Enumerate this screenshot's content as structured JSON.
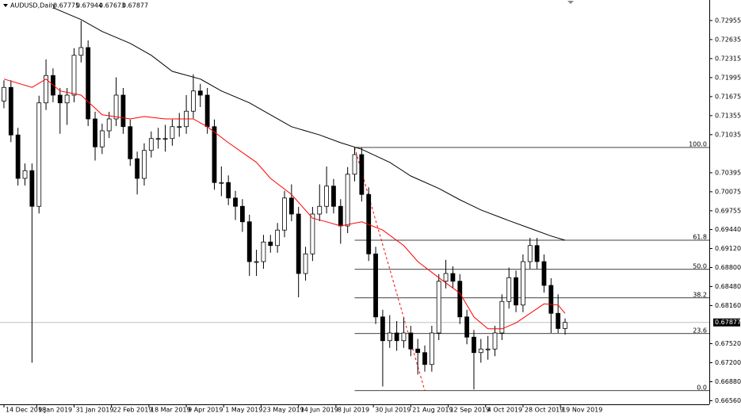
{
  "chart_data": {
    "type": "candlestick",
    "symbol": "AUDUSD,Daily",
    "open": [
      0.716,
      0.7183,
      0.7103,
      0.703,
      0.7043,
      0.6983,
      0.7157,
      0.7203,
      0.717,
      0.7157,
      0.717,
      0.7237,
      0.725,
      0.713,
      0.7083,
      0.711,
      0.713,
      0.717,
      0.7117,
      0.7063,
      0.703,
      0.7077,
      0.7097,
      0.7097,
      0.7097,
      0.7117,
      0.7117,
      0.7143,
      0.7177,
      0.717,
      0.7117,
      0.7023,
      0.7023,
      0.6997,
      0.6983,
      0.6957,
      0.689,
      0.689,
      0.6923,
      0.6917,
      0.6943,
      0.6997,
      0.697,
      0.687,
      0.6903,
      0.697,
      0.6983,
      0.7017,
      0.6983,
      0.695,
      0.7037,
      0.707,
      0.7003,
      0.6903,
      0.6797,
      0.6757,
      0.677,
      0.6757,
      0.677,
      0.6743,
      0.6737,
      0.6717,
      0.677,
      0.6857,
      0.687,
      0.6857,
      0.6797,
      0.6763,
      0.6737,
      0.6743,
      0.6743,
      0.677,
      0.6823,
      0.6863,
      0.6817,
      0.689,
      0.6917,
      0.689,
      0.685,
      0.6803,
      0.67775
    ],
    "high": [
      0.7195,
      0.7195,
      0.7115,
      0.7055,
      0.7055,
      0.7169,
      0.723,
      0.7215,
      0.7182,
      0.7182,
      0.7249,
      0.7295,
      0.7262,
      0.7142,
      0.7122,
      0.7142,
      0.72,
      0.7182,
      0.7129,
      0.7075,
      0.7089,
      0.7109,
      0.7115,
      0.712,
      0.7129,
      0.714,
      0.717,
      0.7205,
      0.7189,
      0.7182,
      0.7129,
      0.705,
      0.7035,
      0.7009,
      0.6995,
      0.6969,
      0.691,
      0.6935,
      0.6935,
      0.6955,
      0.7009,
      0.702,
      0.6982,
      0.6915,
      0.6982,
      0.702,
      0.705,
      0.7029,
      0.6995,
      0.7049,
      0.7082,
      0.7082,
      0.7015,
      0.6915,
      0.6809,
      0.68,
      0.679,
      0.6795,
      0.6782,
      0.676,
      0.6749,
      0.6782,
      0.6869,
      0.6893,
      0.6882,
      0.6869,
      0.6809,
      0.6775,
      0.676,
      0.6765,
      0.6782,
      0.6835,
      0.688,
      0.6875,
      0.6902,
      0.693,
      0.693,
      0.6902,
      0.6862,
      0.6835,
      0.67944
    ],
    "low": [
      0.7148,
      0.7091,
      0.7018,
      0.7018,
      0.672,
      0.6971,
      0.7145,
      0.7158,
      0.7105,
      0.712,
      0.7158,
      0.7225,
      0.7118,
      0.706,
      0.7071,
      0.7098,
      0.7118,
      0.7105,
      0.7051,
      0.7003,
      0.7018,
      0.7065,
      0.708,
      0.7075,
      0.7085,
      0.71,
      0.7105,
      0.7131,
      0.715,
      0.7105,
      0.7011,
      0.7,
      0.6985,
      0.696,
      0.694,
      0.6866,
      0.6866,
      0.6878,
      0.6905,
      0.6905,
      0.6931,
      0.6958,
      0.683,
      0.6858,
      0.6891,
      0.6958,
      0.6971,
      0.6971,
      0.692,
      0.6938,
      0.7025,
      0.6991,
      0.6891,
      0.6785,
      0.668,
      0.6745,
      0.674,
      0.6745,
      0.6731,
      0.67,
      0.6705,
      0.6705,
      0.6758,
      0.6845,
      0.6845,
      0.6785,
      0.6751,
      0.6675,
      0.672,
      0.6725,
      0.6731,
      0.6758,
      0.6811,
      0.6805,
      0.6805,
      0.6878,
      0.6878,
      0.6838,
      0.677,
      0.677,
      0.67673
    ],
    "close": [
      0.7183,
      0.7103,
      0.703,
      0.7043,
      0.6983,
      0.7157,
      0.7203,
      0.717,
      0.7157,
      0.717,
      0.7237,
      0.725,
      0.713,
      0.7083,
      0.711,
      0.713,
      0.717,
      0.7117,
      0.7063,
      0.703,
      0.7077,
      0.7097,
      0.7097,
      0.7097,
      0.7117,
      0.7117,
      0.7143,
      0.7177,
      0.717,
      0.7117,
      0.7023,
      0.7023,
      0.6997,
      0.6983,
      0.6957,
      0.689,
      0.689,
      0.6923,
      0.6917,
      0.6943,
      0.6997,
      0.697,
      0.687,
      0.6903,
      0.697,
      0.6983,
      0.7017,
      0.6983,
      0.695,
      0.7037,
      0.707,
      0.7003,
      0.6903,
      0.6797,
      0.6757,
      0.677,
      0.6757,
      0.677,
      0.6743,
      0.6737,
      0.6717,
      0.677,
      0.6857,
      0.687,
      0.6857,
      0.6797,
      0.6763,
      0.6737,
      0.6743,
      0.6743,
      0.677,
      0.6823,
      0.6863,
      0.6817,
      0.689,
      0.6917,
      0.689,
      0.685,
      0.6803,
      0.67775,
      0.67877
    ],
    "moving_averages": [
      {
        "color": "#ff0000",
        "x": [
          0,
          4,
          6,
          8,
          11,
          14,
          18,
          20,
          23,
          27,
          29,
          32,
          36,
          38,
          41,
          44,
          46,
          48,
          51,
          54,
          57,
          59,
          62,
          65,
          67,
          69,
          71,
          73,
          75,
          77,
          79,
          80
        ],
        "values": [
          0.7197,
          0.7183,
          0.7197,
          0.7177,
          0.717,
          0.7137,
          0.713,
          0.7134,
          0.713,
          0.713,
          0.7117,
          0.709,
          0.7057,
          0.703,
          0.7003,
          0.6963,
          0.6957,
          0.695,
          0.6957,
          0.6943,
          0.6917,
          0.689,
          0.6863,
          0.6837,
          0.6797,
          0.6777,
          0.6777,
          0.6787,
          0.6803,
          0.6819,
          0.6817,
          0.6803
        ]
      },
      {
        "color": "#000000",
        "x": [
          7,
          11,
          14,
          18,
          21,
          24,
          28,
          31,
          35,
          38,
          41,
          45,
          48,
          51,
          55,
          58,
          62,
          65,
          68,
          72,
          75,
          78,
          80
        ],
        "values": [
          0.7317,
          0.7297,
          0.7277,
          0.7257,
          0.7237,
          0.721,
          0.7197,
          0.7177,
          0.7157,
          0.7137,
          0.7117,
          0.7103,
          0.709,
          0.7079,
          0.7057,
          0.7034,
          0.7013,
          0.6994,
          0.6977,
          0.6959,
          0.6946,
          0.6933,
          0.6926
        ]
      }
    ],
    "fibonacci": [
      {
        "label": "100.0",
        "price": 0.7082
      },
      {
        "label": "61.8",
        "price": 0.6926
      },
      {
        "label": "50.0",
        "price": 0.6877
      },
      {
        "label": "38.2",
        "price": 0.6829
      },
      {
        "label": "23.6",
        "price": 0.6769
      },
      {
        "label": "0.0",
        "price": 0.6673
      }
    ],
    "xlim": [
      -0.56,
      100.56
    ],
    "ylim": [
      0.665,
      0.733
    ],
    "xticks": [
      {
        "value": 0,
        "label": "14 Dec 2018"
      },
      {
        "value": 4.67,
        "label": "9 Jan 2019"
      },
      {
        "value": 10,
        "label": "31 Jan 2019"
      },
      {
        "value": 15.33,
        "label": "22 Feb 2019"
      },
      {
        "value": 20.67,
        "label": "18 Mar 2019"
      },
      {
        "value": 26,
        "label": "9 Apr 2019"
      },
      {
        "value": 31.33,
        "label": "1 May 2019"
      },
      {
        "value": 36.67,
        "label": "23 May 2019"
      },
      {
        "value": 42,
        "label": "14 Jun 2019"
      },
      {
        "value": 47.33,
        "label": "8 Jul 2019"
      },
      {
        "value": 52.67,
        "label": "30 Jul 2019"
      },
      {
        "value": 58,
        "label": "21 Aug 2019"
      },
      {
        "value": 63.33,
        "label": "12 Sep 2019"
      },
      {
        "value": 68.67,
        "label": "4 Oct 2019"
      },
      {
        "value": 74,
        "label": "28 Oct 2019"
      },
      {
        "value": 79.33,
        "label": "19 Nov 2019"
      }
    ],
    "yticks": [
      0.72955,
      0.72635,
      0.72315,
      0.71995,
      0.71675,
      0.71355,
      0.71035,
      0.70395,
      0.70075,
      0.69755,
      {
        "value": 0.6944,
        "label": "0.69440"
      },
      {
        "value": 0.6912,
        "label": "0.69120"
      },
      {
        "value": 0.688,
        "label": "0.68800"
      },
      {
        "value": 0.6848,
        "label": "0.68480"
      },
      {
        "value": 0.6816,
        "label": "0.68160"
      },
      {
        "value": 0.6752,
        "label": "0.67520"
      },
      {
        "value": 0.672,
        "label": "0.67200"
      },
      {
        "value": 0.6688,
        "label": "0.66880"
      },
      {
        "value": 0.6656,
        "label": "0.66560"
      }
    ]
  }
}
